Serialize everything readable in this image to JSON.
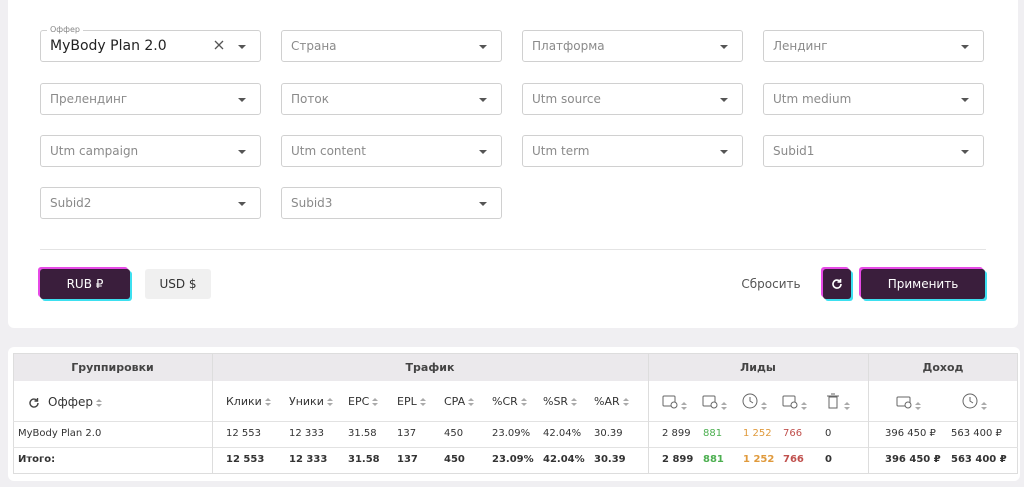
{
  "filters": [
    {
      "label": "Оффер",
      "value": "MyBody Plan 2.0"
    },
    {
      "placeholder": "Страна"
    },
    {
      "placeholder": "Платформа"
    },
    {
      "placeholder": "Лендинг"
    },
    {
      "placeholder": "Прелендинг"
    },
    {
      "placeholder": "Поток"
    },
    {
      "placeholder": "Utm source"
    },
    {
      "placeholder": "Utm medium"
    },
    {
      "placeholder": "Utm campaign"
    },
    {
      "placeholder": "Utm content"
    },
    {
      "placeholder": "Utm term"
    },
    {
      "placeholder": "Subid1"
    },
    {
      "placeholder": "Subid2"
    },
    {
      "placeholder": "Subid3"
    }
  ],
  "currency": [
    "RUB ₽",
    "USD $"
  ],
  "reset": "Сбросить",
  "apply": "Применить",
  "table": {
    "groups": [
      "Группировки",
      "Трафик",
      "Лиды",
      "Доход"
    ],
    "columns": [
      "Оффер",
      "Клики",
      "Уники",
      "EPC",
      "EPL",
      "CPA",
      "%CR",
      "%SR",
      "%AR"
    ],
    "rows": [
      [
        "MyBody Plan 2.0",
        "12 553",
        "12 333",
        "31.58",
        "137",
        "450",
        "23.09%",
        "42.04%",
        "30.39",
        "2 899",
        "881",
        "1 252",
        "766",
        "0",
        "396 450 ₽",
        "563 400 ₽"
      ],
      [
        "Итого:",
        "12 553",
        "12 333",
        "31.58",
        "137",
        "450",
        "23.09%",
        "42.04%",
        "30.39",
        "2 899",
        "881",
        "1 252",
        "766",
        "0",
        "396 450 ₽",
        "563 400 ₽"
      ]
    ]
  }
}
